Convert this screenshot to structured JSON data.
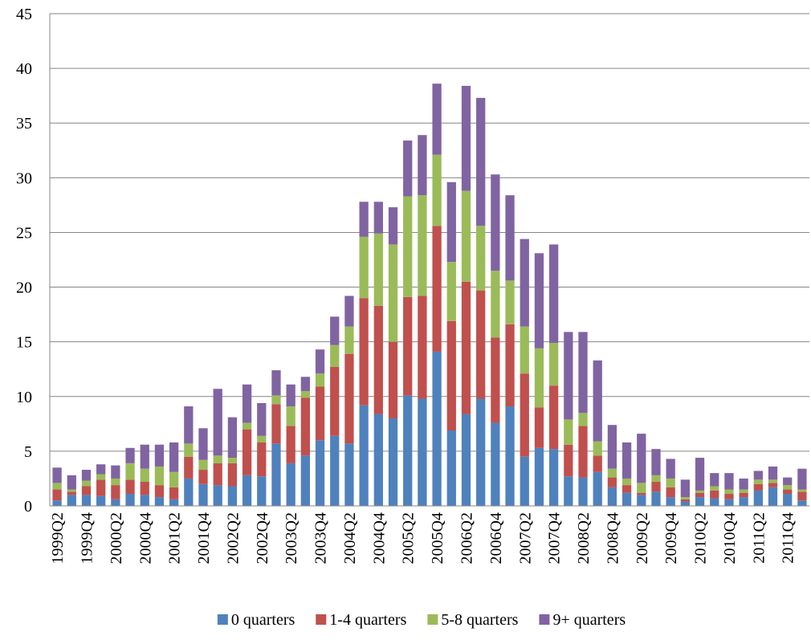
{
  "chart_data": {
    "type": "stacked_bar",
    "categories": [
      "1999Q2",
      null,
      "1999Q4",
      null,
      "2000Q2",
      null,
      "2000Q4",
      null,
      "2001Q2",
      null,
      "2001Q4",
      null,
      "2002Q2",
      null,
      "2002Q4",
      null,
      "2003Q2",
      null,
      "2003Q4",
      null,
      "2004Q2",
      null,
      "2004Q4",
      null,
      "2005Q2",
      null,
      "2005Q4",
      null,
      "2006Q2",
      null,
      "2006Q4",
      null,
      "2007Q2",
      null,
      "2007Q4",
      null,
      "2008Q2",
      null,
      "2008Q4",
      null,
      "2009Q2",
      null,
      "2009Q4",
      null,
      "2010Q2",
      null,
      "2010Q4",
      null,
      "2011Q2",
      null,
      "2011Q4",
      null
    ],
    "series": [
      {
        "name": "0 quarters",
        "color": "#4f81bd",
        "values": [
          0.5,
          1.0,
          1.0,
          0.9,
          0.6,
          1.1,
          1.0,
          0.8,
          0.6,
          2.5,
          2.0,
          1.9,
          1.8,
          2.8,
          2.7,
          5.7,
          3.9,
          4.6,
          6.0,
          6.4,
          5.7,
          9.2,
          8.4,
          8.0,
          10.1,
          9.8,
          14.1,
          6.9,
          8.4,
          9.8,
          7.6,
          9.1,
          4.5,
          5.3,
          5.2,
          2.7,
          2.6,
          3.1,
          1.7,
          1.2,
          1.0,
          1.3,
          0.8,
          0.4,
          0.8,
          0.7,
          0.6,
          0.8,
          1.4,
          1.7,
          1.1,
          0.5
        ]
      },
      {
        "name": "1-4 quarters",
        "color": "#c0504d",
        "values": [
          1.0,
          0.3,
          0.8,
          1.5,
          1.3,
          1.3,
          1.2,
          1.1,
          1.1,
          2.0,
          1.3,
          2.0,
          2.1,
          4.2,
          3.1,
          3.6,
          3.4,
          5.3,
          4.9,
          6.3,
          8.2,
          9.8,
          9.9,
          7.0,
          9.0,
          9.4,
          11.5,
          10.0,
          12.1,
          9.9,
          7.8,
          7.5,
          7.6,
          3.7,
          5.8,
          2.9,
          4.7,
          1.5,
          0.9,
          0.7,
          0.2,
          0.9,
          0.9,
          0.2,
          0.4,
          0.7,
          0.5,
          0.4,
          0.6,
          0.4,
          0.4,
          0.8
        ]
      },
      {
        "name": "5-8 quarters",
        "color": "#9bbb59",
        "values": [
          0.6,
          0.2,
          0.5,
          0.5,
          0.6,
          1.5,
          1.2,
          1.7,
          1.4,
          1.2,
          0.9,
          0.7,
          0.5,
          0.6,
          0.6,
          0.8,
          1.8,
          0.6,
          1.2,
          2.0,
          2.5,
          5.6,
          6.6,
          8.9,
          9.2,
          9.2,
          6.5,
          5.4,
          8.3,
          5.9,
          6.1,
          4.0,
          4.3,
          5.4,
          3.9,
          2.3,
          1.2,
          1.3,
          0.8,
          0.6,
          0.9,
          0.6,
          0.8,
          0.2,
          0.2,
          0.4,
          0.4,
          0.3,
          0.4,
          0.3,
          0.4,
          0.2
        ]
      },
      {
        "name": "9+ quarters",
        "color": "#8064a2",
        "values": [
          1.4,
          1.3,
          1.0,
          0.9,
          1.2,
          1.4,
          2.2,
          2.0,
          2.7,
          3.4,
          2.9,
          6.1,
          3.7,
          3.5,
          3.0,
          2.3,
          2.0,
          1.3,
          2.2,
          2.6,
          2.8,
          3.2,
          2.9,
          3.4,
          5.1,
          5.5,
          6.5,
          7.3,
          9.6,
          11.7,
          8.8,
          7.8,
          8.0,
          8.7,
          9.0,
          8.0,
          7.4,
          7.4,
          4.0,
          3.3,
          4.5,
          2.4,
          1.8,
          1.6,
          3.0,
          1.2,
          1.5,
          1.0,
          0.8,
          1.2,
          0.7,
          1.9
        ]
      }
    ],
    "ylim": [
      0,
      45
    ],
    "yticks": [
      0,
      5,
      10,
      15,
      20,
      25,
      30,
      35,
      40,
      45
    ],
    "grid": true,
    "legend": "bottom"
  }
}
